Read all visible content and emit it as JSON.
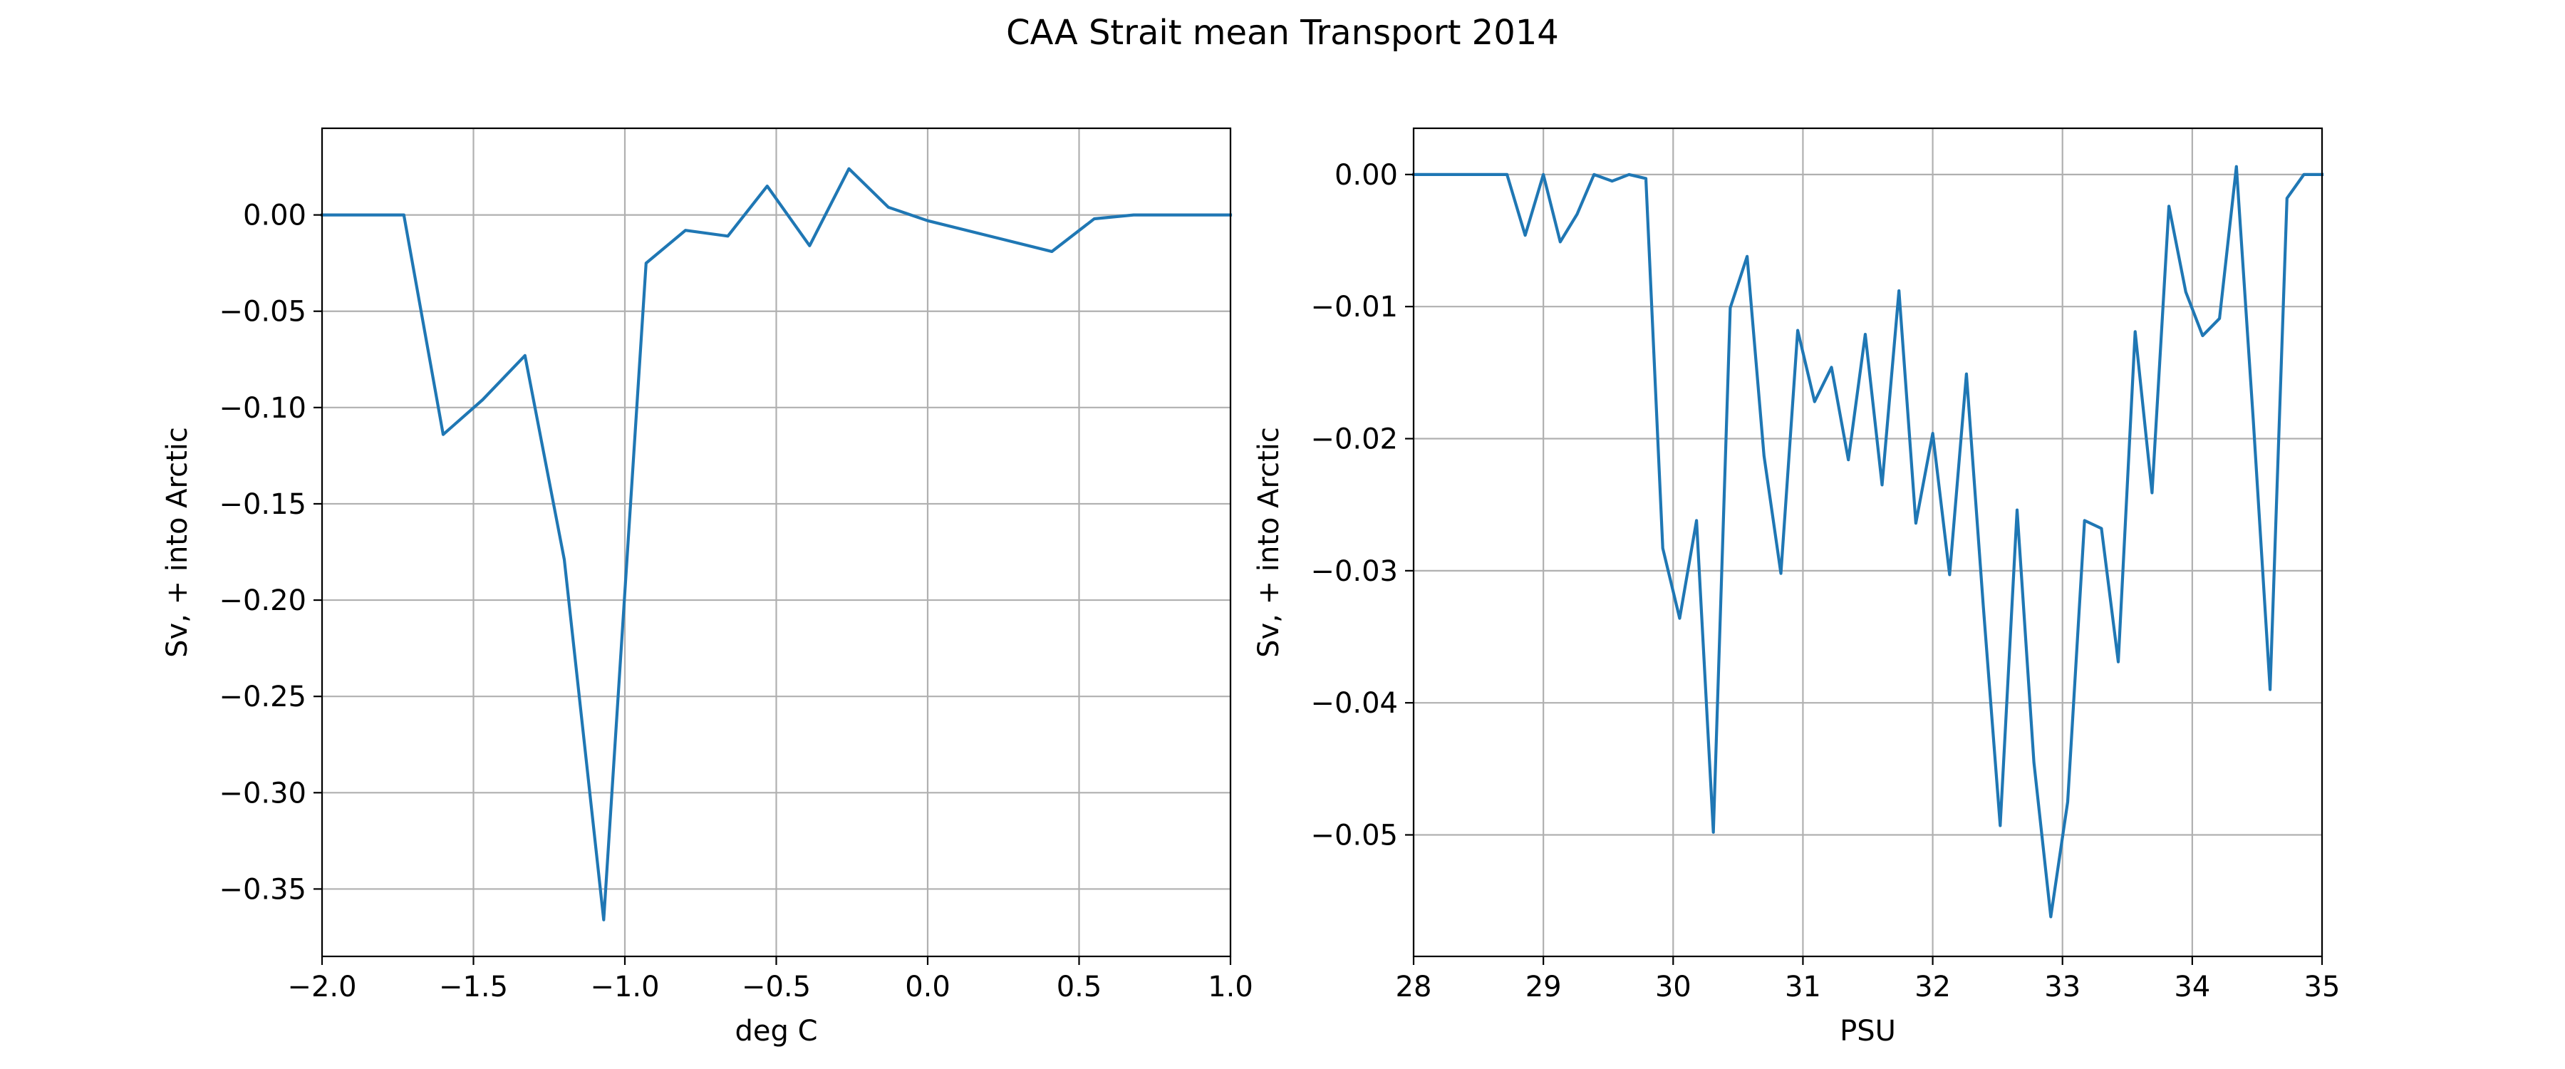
{
  "figure": {
    "title": "CAA Strait mean Transport 2014"
  },
  "chart_data": [
    {
      "type": "line",
      "xlabel": "deg C",
      "ylabel": "Sv, + into Arctic",
      "xlim": [
        -2.0,
        1.0
      ],
      "ylim": [
        -0.385,
        0.045
      ],
      "xticks": [
        -2.0,
        -1.5,
        -1.0,
        -0.5,
        0.0,
        0.5,
        1.0
      ],
      "xtick_labels": [
        "−2.0",
        "−1.5",
        "−1.0",
        "−0.5",
        "0.0",
        "0.5",
        "1.0"
      ],
      "yticks": [
        0.0,
        -0.05,
        -0.1,
        -0.15,
        -0.2,
        -0.25,
        -0.3,
        -0.35
      ],
      "ytick_labels": [
        "0.00",
        "−0.05",
        "−0.10",
        "−0.15",
        "−0.20",
        "−0.25",
        "−0.30",
        "−0.35"
      ],
      "grid": true,
      "color": "#1f77b4",
      "series": [
        {
          "x": [
            -2.0,
            -1.73,
            -1.6,
            -1.47,
            -1.33,
            -1.2,
            -1.07,
            -0.93,
            -0.8,
            -0.66,
            -0.53,
            -0.39,
            -0.26,
            -0.13,
            0.0,
            0.41,
            0.55,
            0.68,
            1.0
          ],
          "y": [
            0.0,
            0.0,
            -0.114,
            -0.096,
            -0.073,
            -0.179,
            -0.366,
            -0.025,
            -0.008,
            -0.011,
            0.015,
            -0.016,
            0.024,
            0.004,
            -0.003,
            -0.019,
            -0.002,
            0.0,
            0.0
          ]
        }
      ]
    },
    {
      "type": "line",
      "xlabel": "PSU",
      "ylabel": "Sv, + into Arctic",
      "xlim": [
        28,
        35
      ],
      "ylim": [
        -0.0592,
        0.0035
      ],
      "xticks": [
        28,
        29,
        30,
        31,
        32,
        33,
        34,
        35
      ],
      "xtick_labels": [
        "28",
        "29",
        "30",
        "31",
        "32",
        "33",
        "34",
        "35"
      ],
      "yticks": [
        0.0,
        -0.01,
        -0.02,
        -0.03,
        -0.04,
        -0.05
      ],
      "ytick_labels": [
        "0.00",
        "−0.01",
        "−0.02",
        "−0.03",
        "−0.04",
        "−0.05"
      ],
      "grid": true,
      "color": "#1f77b4",
      "series": [
        {
          "x": [
            28.0,
            28.72,
            28.86,
            29.0,
            29.13,
            29.26,
            29.39,
            29.53,
            29.66,
            29.79,
            29.92,
            30.05,
            30.18,
            30.31,
            30.44,
            30.57,
            30.7,
            30.83,
            30.96,
            31.09,
            31.22,
            31.35,
            31.48,
            31.61,
            31.74,
            31.87,
            32.0,
            32.13,
            32.26,
            32.39,
            32.52,
            32.65,
            32.78,
            32.91,
            33.04,
            33.17,
            33.3,
            33.43,
            33.56,
            33.69,
            33.82,
            33.95,
            34.08,
            34.21,
            34.34,
            34.47,
            34.6,
            34.73,
            34.86,
            35.0
          ],
          "y": [
            0.0,
            0.0,
            -0.0046,
            0.0,
            -0.0051,
            -0.003,
            0.0,
            -0.0005,
            0.0,
            -0.0003,
            -0.0283,
            -0.0336,
            -0.0262,
            -0.0498,
            -0.0101,
            -0.0062,
            -0.0213,
            -0.0302,
            -0.0118,
            -0.0172,
            -0.0146,
            -0.0216,
            -0.0121,
            -0.0235,
            -0.0088,
            -0.0264,
            -0.0196,
            -0.0303,
            -0.0151,
            -0.0327,
            -0.0493,
            -0.0254,
            -0.0445,
            -0.0562,
            -0.0475,
            -0.0262,
            -0.0268,
            -0.0369,
            -0.0119,
            -0.0241,
            -0.0024,
            -0.0089,
            -0.0122,
            -0.0109,
            0.0006,
            -0.0186,
            -0.039,
            -0.0018,
            0.0,
            0.0
          ]
        }
      ]
    }
  ]
}
